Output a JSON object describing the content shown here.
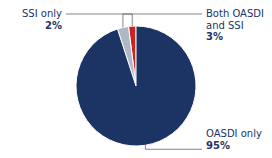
{
  "chart_data": {
    "type": "pie",
    "categories": [
      "SSI only",
      "Both OASDI\nand SSI",
      "OASDI only"
    ],
    "values": [
      2,
      3,
      95
    ],
    "value_labels": [
      "2%",
      "3%",
      "95%"
    ],
    "colors": [
      "#cc2222",
      "#b0b8c8",
      "#1c3464"
    ],
    "data_labels": true
  }
}
